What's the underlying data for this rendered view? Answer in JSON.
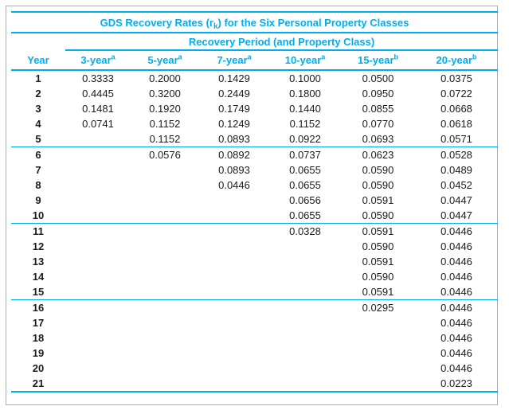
{
  "colors": {
    "accent": "#00aeef",
    "frame": "#adadad",
    "text": "#1b1b1b"
  },
  "table": {
    "title_prefix": "GDS Recovery Rates (r",
    "title_sub": "k",
    "title_suffix": ") for the Six Personal Property Classes",
    "subtitle": "Recovery Period (and Property Class)",
    "year_header": "Year"
  },
  "chart_data": {
    "type": "table",
    "title": "GDS Recovery Rates (r_k) for the Six Personal Property Classes",
    "subtitle": "Recovery Period (and Property Class)",
    "columns": [
      "Year",
      "3-year",
      "5-year",
      "7-year",
      "10-year",
      "15-year",
      "20-year"
    ],
    "column_footnotes": [
      "",
      "a",
      "a",
      "a",
      "a",
      "b",
      "b"
    ],
    "group_breaks_after_years": [
      5,
      10,
      15
    ],
    "rows": [
      [
        "1",
        "0.3333",
        "0.2000",
        "0.1429",
        "0.1000",
        "0.0500",
        "0.0375"
      ],
      [
        "2",
        "0.4445",
        "0.3200",
        "0.2449",
        "0.1800",
        "0.0950",
        "0.0722"
      ],
      [
        "3",
        "0.1481",
        "0.1920",
        "0.1749",
        "0.1440",
        "0.0855",
        "0.0668"
      ],
      [
        "4",
        "0.0741",
        "0.1152",
        "0.1249",
        "0.1152",
        "0.0770",
        "0.0618"
      ],
      [
        "5",
        "",
        "0.1152",
        "0.0893",
        "0.0922",
        "0.0693",
        "0.0571"
      ],
      [
        "6",
        "",
        "0.0576",
        "0.0892",
        "0.0737",
        "0.0623",
        "0.0528"
      ],
      [
        "7",
        "",
        "",
        "0.0893",
        "0.0655",
        "0.0590",
        "0.0489"
      ],
      [
        "8",
        "",
        "",
        "0.0446",
        "0.0655",
        "0.0590",
        "0.0452"
      ],
      [
        "9",
        "",
        "",
        "",
        "0.0656",
        "0.0591",
        "0.0447"
      ],
      [
        "10",
        "",
        "",
        "",
        "0.0655",
        "0.0590",
        "0.0447"
      ],
      [
        "11",
        "",
        "",
        "",
        "0.0328",
        "0.0591",
        "0.0446"
      ],
      [
        "12",
        "",
        "",
        "",
        "",
        "0.0590",
        "0.0446"
      ],
      [
        "13",
        "",
        "",
        "",
        "",
        "0.0591",
        "0.0446"
      ],
      [
        "14",
        "",
        "",
        "",
        "",
        "0.0590",
        "0.0446"
      ],
      [
        "15",
        "",
        "",
        "",
        "",
        "0.0591",
        "0.0446"
      ],
      [
        "16",
        "",
        "",
        "",
        "",
        "0.0295",
        "0.0446"
      ],
      [
        "17",
        "",
        "",
        "",
        "",
        "",
        "0.0446"
      ],
      [
        "18",
        "",
        "",
        "",
        "",
        "",
        "0.0446"
      ],
      [
        "19",
        "",
        "",
        "",
        "",
        "",
        "0.0446"
      ],
      [
        "20",
        "",
        "",
        "",
        "",
        "",
        "0.0446"
      ],
      [
        "21",
        "",
        "",
        "",
        "",
        "",
        "0.0223"
      ]
    ]
  }
}
